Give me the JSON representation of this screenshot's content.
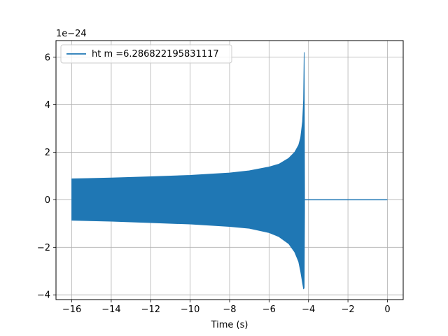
{
  "chart_data": {
    "type": "line",
    "xlabel": "Time (s)",
    "ylabel": "",
    "offset_label": "1e−24",
    "xlim": [
      -16.8,
      0.8
    ],
    "ylim": [
      -4.2,
      6.7
    ],
    "xticks": [
      -16,
      -14,
      -12,
      -10,
      -8,
      -6,
      -4,
      -2,
      0
    ],
    "xtick_labels": [
      "−16",
      "−14",
      "−12",
      "−10",
      "−8",
      "−6",
      "−4",
      "−2",
      "0"
    ],
    "yticks": [
      -4,
      -2,
      0,
      2,
      4,
      6
    ],
    "ytick_labels": [
      "−4",
      "−2",
      "0",
      "2",
      "4",
      "6"
    ],
    "grid": true,
    "legend_position": "top-left",
    "series": [
      {
        "name": "ht m =6.286822195831117",
        "color": "#1f77b4",
        "envelope": {
          "t": [
            -16.0,
            -14.0,
            -12.0,
            -10.0,
            -8.0,
            -7.0,
            -6.0,
            -5.5,
            -5.0,
            -4.7,
            -4.5,
            -4.4,
            -4.3,
            -4.25,
            -4.22,
            -4.2
          ],
          "upper": [
            0.88,
            0.92,
            0.97,
            1.03,
            1.13,
            1.22,
            1.38,
            1.5,
            1.75,
            2.0,
            2.3,
            2.6,
            3.3,
            4.2,
            6.2,
            0.5
          ],
          "lower": [
            -0.86,
            -0.9,
            -0.96,
            -1.02,
            -1.12,
            -1.2,
            -1.38,
            -1.55,
            -1.85,
            -2.2,
            -2.6,
            -3.0,
            -3.5,
            -3.75,
            -3.7,
            -0.5
          ]
        },
        "flat": {
          "t_start": -4.2,
          "t_end": 0.0,
          "value": 0.0
        }
      }
    ]
  }
}
